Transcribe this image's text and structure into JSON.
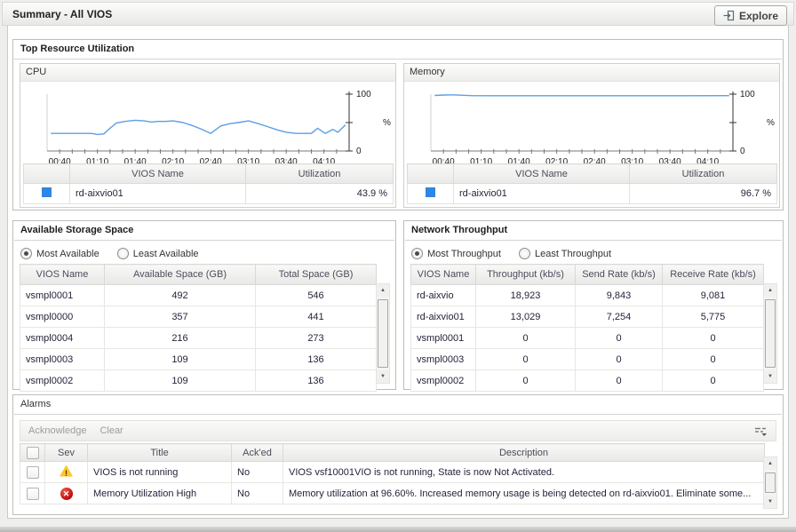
{
  "titlebar": {
    "title": "Summary - All VIOS",
    "explore_label": "Explore"
  },
  "colors": {
    "chart_line": "#5b9fe4",
    "legend_swatch": "#2e87e0",
    "warning": "#fcc62d",
    "critical": "#c00c0c"
  },
  "top_panel": {
    "title": "Top Resource Utilization",
    "cpu": {
      "title": "CPU",
      "legend_headers": {
        "name": "VIOS Name",
        "value": "Utilization"
      },
      "legend_row": {
        "name": "rd-aixvio01",
        "value": "43.9 %"
      }
    },
    "memory": {
      "title": "Memory",
      "legend_headers": {
        "name": "VIOS Name",
        "value": "Utilization"
      },
      "legend_row": {
        "name": "rd-aixvio01",
        "value": "96.7 %"
      }
    }
  },
  "storage": {
    "title": "Available Storage Space",
    "radio_most": "Most Available",
    "radio_least": "Least Available",
    "table": {
      "headers": [
        "VIOS Name",
        "Available Space (GB)",
        "Total Space (GB)"
      ],
      "rows": [
        [
          "vsmpl0001",
          "492",
          "546"
        ],
        [
          "vsmpl0000",
          "357",
          "441"
        ],
        [
          "vsmpl0004",
          "216",
          "273"
        ],
        [
          "vsmpl0003",
          "109",
          "136"
        ],
        [
          "vsmpl0002",
          "109",
          "136"
        ]
      ]
    }
  },
  "network": {
    "title": "Network Throughput",
    "radio_most": "Most Throughput",
    "radio_least": "Least Throughput",
    "table": {
      "headers": [
        "VIOS Name",
        "Throughput (kb/s)",
        "Send Rate (kb/s)",
        "Receive Rate (kb/s)"
      ],
      "rows": [
        [
          "rd-aixvio",
          "18,923",
          "9,843",
          "9,081"
        ],
        [
          "rd-aixvio01",
          "13,029",
          "7,254",
          "5,775"
        ],
        [
          "vsmpl0001",
          "0",
          "0",
          "0"
        ],
        [
          "vsmpl0003",
          "0",
          "0",
          "0"
        ],
        [
          "vsmpl0002",
          "0",
          "0",
          "0"
        ]
      ]
    }
  },
  "alarms": {
    "title": "Alarms",
    "toolbar": {
      "acknowledge": "Acknowledge",
      "clear": "Clear"
    },
    "headers": {
      "sev": "Sev",
      "title": "Title",
      "acked": "Ack'ed",
      "desc": "Description"
    },
    "rows": [
      {
        "sev": "warning",
        "title": "VIOS is not running",
        "acked": "No",
        "desc": "VIOS vsf10001VIO is not running, State is now Not Activated."
      },
      {
        "sev": "critical",
        "title": "Memory Utilization High",
        "acked": "No",
        "desc": "Memory utilization at 96.60%. Increased memory usage is being detected on rd-aixvio01. Eliminate some..."
      }
    ]
  },
  "chart_data": [
    {
      "type": "line",
      "title": "CPU",
      "ylabel": "%",
      "xlim": [
        30,
        270
      ],
      "ylim": [
        0,
        100
      ],
      "y_ticks": [
        0,
        50,
        100
      ],
      "minor_tick_step": 10,
      "x_ticks": [
        {
          "t": 40,
          "label": "00:40"
        },
        {
          "t": 70,
          "label": "01:10"
        },
        {
          "t": 100,
          "label": "01:40"
        },
        {
          "t": 130,
          "label": "02:10"
        },
        {
          "t": 160,
          "label": "02:40"
        },
        {
          "t": 190,
          "label": "03:10"
        },
        {
          "t": 220,
          "label": "03:40"
        },
        {
          "t": 250,
          "label": "04:10"
        }
      ],
      "series": [
        {
          "name": "rd-aixvio01",
          "color": "#5b9fe4",
          "points": [
            [
              33,
              31
            ],
            [
              45,
              31
            ],
            [
              55,
              31
            ],
            [
              65,
              31
            ],
            [
              70,
              29
            ],
            [
              75,
              30
            ],
            [
              80,
              40
            ],
            [
              85,
              49
            ],
            [
              92,
              52
            ],
            [
              100,
              54
            ],
            [
              107,
              53
            ],
            [
              113,
              51
            ],
            [
              118,
              52
            ],
            [
              124,
              52
            ],
            [
              130,
              53
            ],
            [
              138,
              50
            ],
            [
              145,
              45
            ],
            [
              152,
              39
            ],
            [
              160,
              31
            ],
            [
              168,
              44
            ],
            [
              175,
              48
            ],
            [
              182,
              50
            ],
            [
              190,
              53
            ],
            [
              198,
              48
            ],
            [
              205,
              43
            ],
            [
              213,
              37
            ],
            [
              220,
              33
            ],
            [
              228,
              31
            ],
            [
              235,
              31
            ],
            [
              240,
              31
            ],
            [
              245,
              40
            ],
            [
              251,
              31
            ],
            [
              257,
              38
            ],
            [
              261,
              33
            ],
            [
              267,
              46
            ]
          ]
        }
      ]
    },
    {
      "type": "line",
      "title": "Memory",
      "ylabel": "%",
      "xlim": [
        30,
        270
      ],
      "ylim": [
        0,
        100
      ],
      "y_ticks": [
        0,
        50,
        100
      ],
      "minor_tick_step": 10,
      "x_ticks": [
        {
          "t": 40,
          "label": "00:40"
        },
        {
          "t": 70,
          "label": "01:10"
        },
        {
          "t": 100,
          "label": "01:40"
        },
        {
          "t": 130,
          "label": "02:10"
        },
        {
          "t": 160,
          "label": "02:40"
        },
        {
          "t": 190,
          "label": "03:10"
        },
        {
          "t": 220,
          "label": "03:40"
        },
        {
          "t": 250,
          "label": "04:10"
        }
      ],
      "series": [
        {
          "name": "rd-aixvio01",
          "color": "#5b9fe4",
          "points": [
            [
              33,
              97.6
            ],
            [
              40,
              98.4
            ],
            [
              47,
              98.8
            ],
            [
              54,
              98.1
            ],
            [
              62,
              97.4
            ],
            [
              75,
              97.2
            ],
            [
              110,
              97.2
            ],
            [
              150,
              97.2
            ],
            [
              190,
              97.2
            ],
            [
              230,
              97.2
            ],
            [
              267,
              97.3
            ]
          ]
        }
      ]
    }
  ]
}
